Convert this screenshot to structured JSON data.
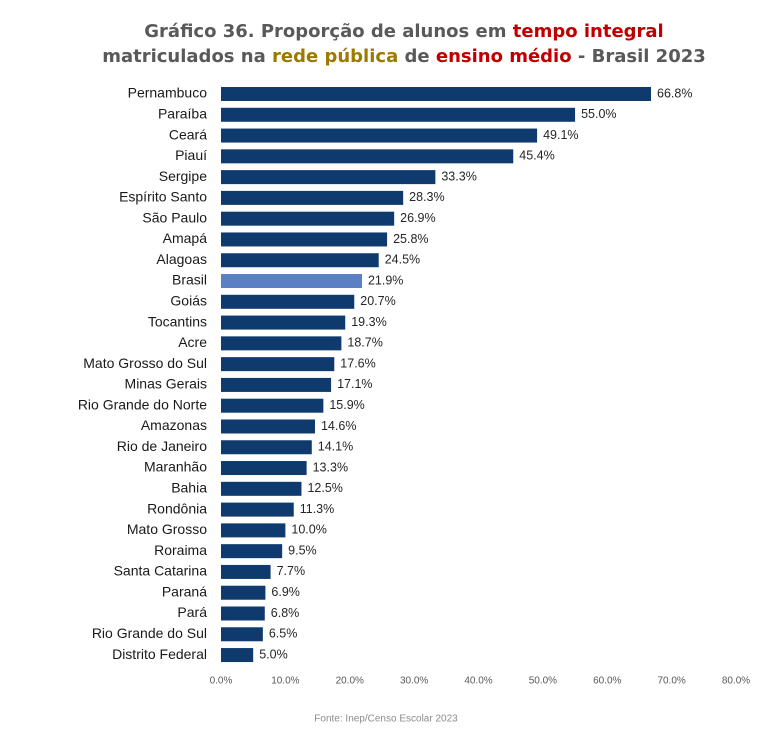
{
  "chart_data": {
    "type": "barh",
    "title": [
      [
        {
          "text": "Gráfico 36. Proporção de alunos em ",
          "color": "#595959"
        },
        {
          "text": "tempo integral",
          "color": "#c00000"
        }
      ],
      [
        {
          "text": "matriculados na ",
          "color": "#595959"
        },
        {
          "text": "rede pública",
          "color": "#9c7a00"
        },
        {
          "text": " de ",
          "color": "#595959"
        },
        {
          "text": "ensino médio",
          "color": "#c00000"
        },
        {
          "text": " - Brasil 2023",
          "color": "#595959"
        }
      ]
    ],
    "categories": [
      "Pernambuco",
      "Paraíba",
      "Ceará",
      "Piauí",
      "Sergipe",
      "Espírito Santo",
      "São Paulo",
      "Amapá",
      "Alagoas",
      "Brasil",
      "Goiás",
      "Tocantins",
      "Acre",
      "Mato Grosso do Sul",
      "Minas Gerais",
      "Rio Grande do Norte",
      "Amazonas",
      "Rio de Janeiro",
      "Maranhão",
      "Bahia",
      "Rondônia",
      "Mato Grosso",
      "Roraima",
      "Santa Catarina",
      "Paraná",
      "Pará",
      "Rio Grande do Sul",
      "Distrito Federal"
    ],
    "values": [
      66.8,
      55.0,
      49.1,
      45.4,
      33.3,
      28.3,
      26.9,
      25.8,
      24.5,
      21.9,
      20.7,
      19.3,
      18.7,
      17.6,
      17.1,
      15.9,
      14.6,
      14.1,
      13.3,
      12.5,
      11.3,
      10.0,
      9.5,
      7.7,
      6.9,
      6.8,
      6.5,
      5.0
    ],
    "value_labels": [
      "66.8%",
      "55.0%",
      "49.1%",
      "45.4%",
      "33.3%",
      "28.3%",
      "26.9%",
      "25.8%",
      "24.5%",
      "21.9%",
      "20.7%",
      "19.3%",
      "18.7%",
      "17.6%",
      "17.1%",
      "15.9%",
      "14.6%",
      "14.1%",
      "13.3%",
      "12.5%",
      "11.3%",
      "10.0%",
      "9.5%",
      "7.7%",
      "6.9%",
      "6.8%",
      "6.5%",
      "5.0%"
    ],
    "color": "#0e3a6e",
    "highlight": {
      "category": "Brasil",
      "color": "#5b7fc4"
    },
    "xlim": [
      0,
      80
    ],
    "xticks": [
      {
        "value": 0,
        "label": "0.0%"
      },
      {
        "value": 10,
        "label": "10.0%"
      },
      {
        "value": 20,
        "label": "20.0%"
      },
      {
        "value": 30,
        "label": "30.0%"
      },
      {
        "value": 40,
        "label": "40.0%"
      },
      {
        "value": 50,
        "label": "50.0%"
      },
      {
        "value": 60,
        "label": "60.0%"
      },
      {
        "value": 70,
        "label": "70.0%"
      },
      {
        "value": 80,
        "label": "80.0%"
      }
    ],
    "grid": false,
    "source": "Fonte: Inep/Censo Escolar 2023"
  }
}
